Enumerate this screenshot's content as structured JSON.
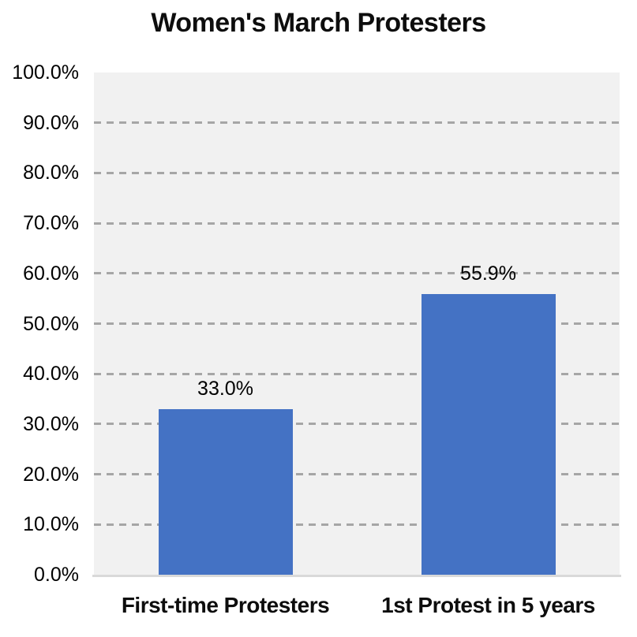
{
  "chart_data": {
    "type": "bar",
    "title": "Women's March Protesters",
    "categories": [
      "First-time Protesters",
      "1st Protest in 5 years"
    ],
    "values": [
      33.0,
      55.9
    ],
    "value_labels": [
      "33.0%",
      "55.9%"
    ],
    "xlabel": "",
    "ylabel": "",
    "ylim": [
      0,
      100
    ],
    "y_tick_step": 10,
    "y_tick_labels": [
      "0.0%",
      "10.0%",
      "20.0%",
      "30.0%",
      "40.0%",
      "50.0%",
      "60.0%",
      "70.0%",
      "80.0%",
      "90.0%",
      "100.0%"
    ],
    "grid": "horizontal-dashed",
    "legend": "none",
    "colors": {
      "bar": "#4472C4",
      "plot_background": "#F1F1F1",
      "gridline": "#A6A6A6",
      "axis_line": "#D9D9D9",
      "text": "#000000"
    }
  }
}
